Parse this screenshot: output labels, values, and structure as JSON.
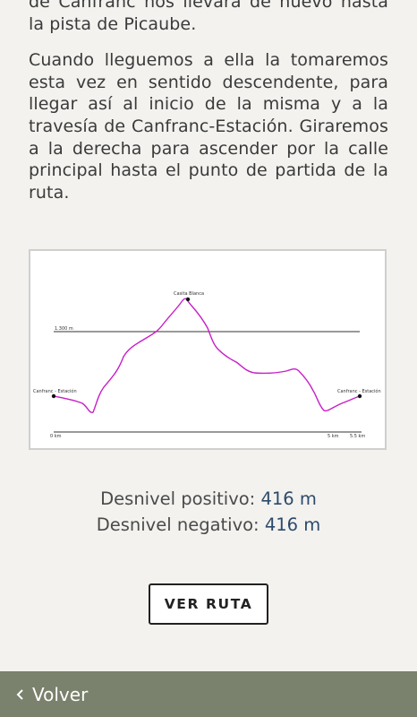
{
  "article": {
    "paragraph1": "de Canfranc nos llevará de nuevo hasta la pista de Picaube.",
    "paragraph2": "Cuando lleguemos a ella la tomaremos esta vez en sentido descendente, para llegar así al inicio de la misma y a la travesía de Canfranc-Estación. Giraremos a la derecha para ascender por la calle principal hasta el punto de partida de la ruta."
  },
  "profile": {
    "peak_label": "Casita Blanca",
    "altitude_line_label": "1.300 m",
    "start_label": "Canfranc - Estación",
    "end_label": "Canfranc - Estación",
    "axis_start": "0 km",
    "axis_mid": "5 km",
    "axis_end": "5.5 km",
    "line_color": "#c71fc7"
  },
  "chart_data": {
    "type": "line",
    "title": "",
    "xlabel": "",
    "ylabel": "",
    "x_unit": "km",
    "reference_line": {
      "label": "1.300 m",
      "value": 1300
    },
    "xlim": [
      0,
      5.5
    ],
    "x_ticks": [
      {
        "label": "0 km",
        "value": 0
      },
      {
        "label": "5 km",
        "value": 5
      },
      {
        "label": "5.5 km",
        "value": 5.5
      }
    ],
    "annotations": [
      {
        "label": "Canfranc - Estación",
        "x": 0
      },
      {
        "label": "Casita Blanca",
        "x": 2.55
      },
      {
        "label": "Canfranc - Estación",
        "x": 5.5
      }
    ],
    "grid": false
  },
  "stats": {
    "positive_label": "Desnivel positivo:",
    "positive_value": "416 m",
    "negative_label": "Desnivel negativo:",
    "negative_value": "416 m"
  },
  "actions": {
    "ver_ruta_label": "VER RUTA"
  },
  "footer": {
    "back_label": "Volver"
  },
  "icons": {
    "back": "chevron-left-icon"
  }
}
